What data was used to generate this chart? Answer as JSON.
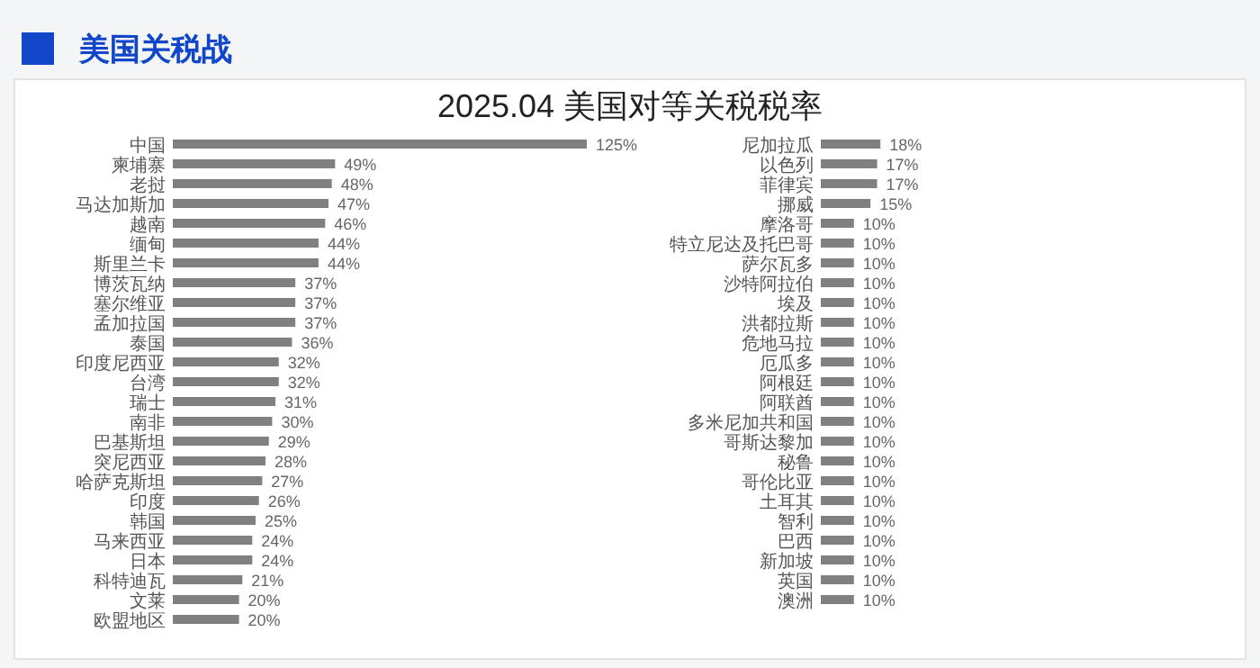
{
  "chart_data": [
    {
      "type": "bar",
      "orientation": "horizontal",
      "title": "2025.04 美国对等关税税率",
      "annotations": [
        "美国关税战"
      ],
      "categories": [
        "中国",
        "柬埔寨",
        "老挝",
        "马达加斯加",
        "越南",
        "缅甸",
        "斯里兰卡",
        "博茨瓦纳",
        "塞尔维亚",
        "孟加拉国",
        "泰国",
        "印度尼西亚",
        "台湾",
        "瑞士",
        "南非",
        "巴基斯坦",
        "突尼西亚",
        "哈萨克斯坦",
        "印度",
        "韩国",
        "马来西亚",
        "日本",
        "科特迪瓦",
        "文莱",
        "欧盟地区"
      ],
      "values": [
        125,
        49,
        48,
        47,
        46,
        44,
        44,
        37,
        37,
        37,
        36,
        32,
        32,
        31,
        30,
        29,
        28,
        27,
        26,
        25,
        24,
        24,
        21,
        20,
        20
      ],
      "value_labels": [
        "125%",
        "49%",
        "48%",
        "47%",
        "46%",
        "44%",
        "44%",
        "37%",
        "37%",
        "37%",
        "36%",
        "32%",
        "32%",
        "31%",
        "30%",
        "29%",
        "28%",
        "27%",
        "26%",
        "25%",
        "24%",
        "24%",
        "21%",
        "20%",
        "20%"
      ],
      "color": "#808080"
    },
    {
      "type": "bar",
      "orientation": "horizontal",
      "categories": [
        "尼加拉瓜",
        "以色列",
        "菲律宾",
        "挪威",
        "摩洛哥",
        "特立尼达及托巴哥",
        "萨尔瓦多",
        "沙特阿拉伯",
        "埃及",
        "洪都拉斯",
        "危地马拉",
        "厄瓜多",
        "阿根廷",
        "阿联酋",
        "多米尼加共和国",
        "哥斯达黎加",
        "秘鲁",
        "哥伦比亚",
        "土耳其",
        "智利",
        "巴西",
        "新加坡",
        "英国",
        "澳洲"
      ],
      "values": [
        18,
        17,
        17,
        15,
        10,
        10,
        10,
        10,
        10,
        10,
        10,
        10,
        10,
        10,
        10,
        10,
        10,
        10,
        10,
        10,
        10,
        10,
        10,
        10
      ],
      "value_labels": [
        "18%",
        "17%",
        "17%",
        "15%",
        "10%",
        "10%",
        "10%",
        "10%",
        "10%",
        "10%",
        "10%",
        "10%",
        "10%",
        "10%",
        "10%",
        "10%",
        "10%",
        "10%",
        "10%",
        "10%",
        "10%",
        "10%",
        "10%",
        "10%"
      ],
      "color": "#808080"
    }
  ]
}
